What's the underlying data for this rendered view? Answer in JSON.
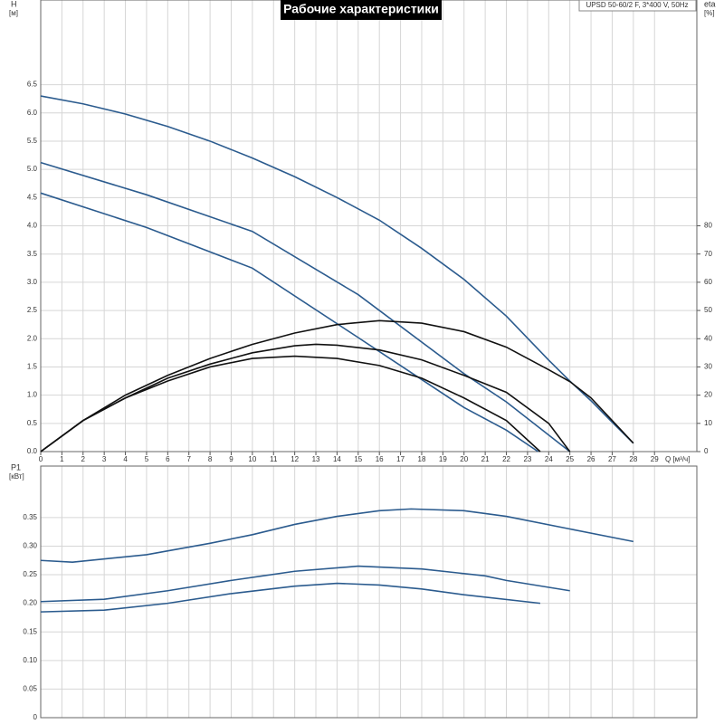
{
  "chart_data": [
    {
      "type": "line",
      "title": "Рабочие характеристики",
      "model": "UPSD 50-60/2 F, 3*400 V, 50Hz",
      "xlabel": "Q [м³/ч]",
      "ylabel": "H",
      "yunit": "[м]",
      "y2label": "eta",
      "y2unit": "[%]",
      "xlim": [
        0,
        31
      ],
      "xticks": [
        0,
        1,
        2,
        3,
        4,
        5,
        6,
        7,
        8,
        9,
        10,
        11,
        12,
        13,
        14,
        15,
        16,
        17,
        18,
        19,
        20,
        21,
        22,
        23,
        24,
        25,
        26,
        27,
        28,
        29
      ],
      "ylim": [
        0,
        8
      ],
      "yticks": [
        {
          "value": 0,
          "label": "0.0"
        },
        {
          "value": 0.5,
          "label": "0.5"
        },
        {
          "value": 1,
          "label": "1.0"
        },
        {
          "value": 1.5,
          "label": "1.5"
        },
        {
          "value": 2,
          "label": "2.0"
        },
        {
          "value": 2.5,
          "label": "2.5"
        },
        {
          "value": 3,
          "label": "3.0"
        },
        {
          "value": 3.5,
          "label": "3.5"
        },
        {
          "value": 4,
          "label": "4.0"
        },
        {
          "value": 4.5,
          "label": "4.5"
        },
        {
          "value": 5,
          "label": "5.0"
        },
        {
          "value": 5.5,
          "label": "5.5"
        },
        {
          "value": 6,
          "label": "6.0"
        },
        {
          "value": 6.5,
          "label": "6.5"
        }
      ],
      "y2lim": [
        0,
        160
      ],
      "y2ticks": [
        0,
        10,
        20,
        30,
        40,
        50,
        60,
        70,
        80
      ],
      "grid": true,
      "series": [
        {
          "color": "#2b5b8e",
          "x": [
            0,
            2,
            4,
            6,
            8,
            10,
            12,
            14,
            16,
            18,
            20,
            22,
            24,
            25,
            26,
            27,
            28
          ],
          "values": [
            6.3,
            6.16,
            5.98,
            5.76,
            5.5,
            5.2,
            4.87,
            4.5,
            4.1,
            3.6,
            3.05,
            2.4,
            1.62,
            1.25,
            0.9,
            0.52,
            0.15
          ]
        },
        {
          "color": "#2b5b8e",
          "x": [
            0,
            5,
            10,
            15,
            20,
            22,
            25
          ],
          "values": [
            5.12,
            4.55,
            3.9,
            2.78,
            1.38,
            0.88,
            0
          ]
        },
        {
          "color": "#2b5b8e",
          "x": [
            0,
            5,
            10,
            15,
            20,
            22,
            23.5
          ],
          "values": [
            4.58,
            3.97,
            3.25,
            2.02,
            0.78,
            0.38,
            0
          ]
        },
        {
          "color": "#111111",
          "axis": "y2",
          "x": [
            0,
            2,
            4,
            6,
            8,
            10,
            12,
            14,
            16,
            18,
            20,
            22,
            24,
            25,
            26,
            28
          ],
          "values": [
            0,
            11,
            20,
            27,
            33,
            38,
            42,
            45,
            46.4,
            45.5,
            42.5,
            37,
            29,
            24.8,
            19,
            3
          ]
        },
        {
          "color": "#111111",
          "axis": "y2",
          "x": [
            0,
            2,
            4,
            6,
            8,
            10,
            12,
            13,
            14,
            16,
            18,
            20,
            22,
            24,
            25
          ],
          "values": [
            0,
            11,
            19,
            26,
            31,
            35,
            37.5,
            38,
            37.7,
            36,
            32.5,
            27,
            21,
            10,
            0
          ]
        },
        {
          "color": "#111111",
          "axis": "y2",
          "x": [
            0,
            2,
            4,
            6,
            8,
            10,
            12,
            14,
            16,
            18,
            20,
            22,
            23.6
          ],
          "values": [
            0,
            11,
            19,
            25,
            30,
            33,
            33.8,
            33,
            30.5,
            26,
            19,
            11,
            0
          ]
        }
      ]
    },
    {
      "type": "line",
      "ylabel": "P1",
      "yunit": "[кВт]",
      "xlim": [
        0,
        31
      ],
      "ylim": [
        0,
        0.44
      ],
      "yticks": [
        0,
        {
          "value": 0.05,
          "label": "0.05"
        },
        {
          "value": 0.1,
          "label": "0.10"
        },
        {
          "value": 0.15,
          "label": "0.15"
        },
        {
          "value": 0.2,
          "label": "0.20"
        },
        {
          "value": 0.25,
          "label": "0.25"
        },
        {
          "value": 0.3,
          "label": "0.30"
        },
        {
          "value": 0.35,
          "label": "0.35"
        }
      ],
      "grid": true,
      "series": [
        {
          "color": "#2b5b8e",
          "x": [
            0,
            1.5,
            5,
            8,
            10,
            12,
            14,
            16,
            17.5,
            20,
            22,
            25,
            28
          ],
          "values": [
            0.275,
            0.272,
            0.285,
            0.305,
            0.32,
            0.338,
            0.352,
            0.362,
            0.365,
            0.362,
            0.352,
            0.33,
            0.308
          ]
        },
        {
          "color": "#2b5b8e",
          "x": [
            0,
            3,
            6,
            9,
            12,
            15,
            18,
            21,
            22,
            25
          ],
          "values": [
            0.203,
            0.207,
            0.222,
            0.24,
            0.256,
            0.265,
            0.26,
            0.248,
            0.24,
            0.222
          ]
        },
        {
          "color": "#2b5b8e",
          "x": [
            0,
            3,
            6,
            9,
            12,
            14,
            16,
            18,
            20,
            23.6
          ],
          "values": [
            0.185,
            0.188,
            0.2,
            0.217,
            0.23,
            0.235,
            0.232,
            0.225,
            0.215,
            0.2
          ]
        }
      ]
    }
  ]
}
